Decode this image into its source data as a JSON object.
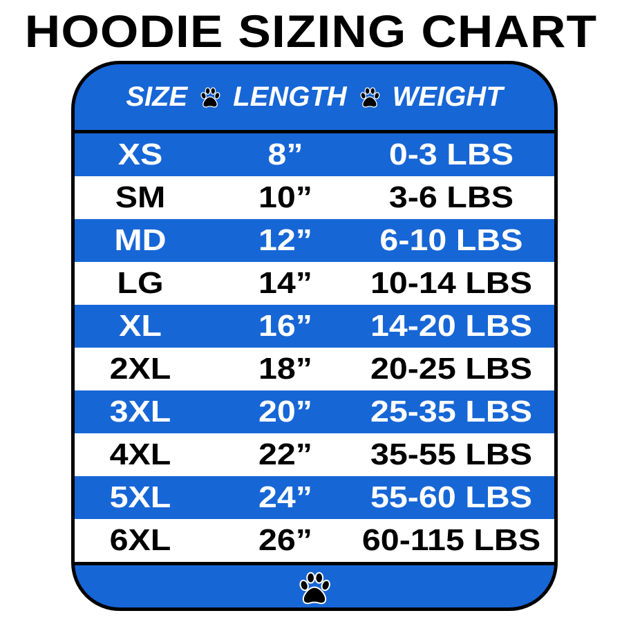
{
  "chart_data": {
    "type": "table",
    "title": "HOODIE SIZING CHART",
    "columns": [
      "SIZE",
      "LENGTH",
      "WEIGHT"
    ],
    "rows": [
      [
        "XS",
        "8”",
        "0-3 LBS"
      ],
      [
        "SM",
        "10”",
        "3-6 LBS"
      ],
      [
        "MD",
        "12”",
        "6-10 LBS"
      ],
      [
        "LG",
        "14”",
        "10-14 LBS"
      ],
      [
        "XL",
        "16”",
        "14-20 LBS"
      ],
      [
        "2XL",
        "18”",
        "20-25 LBS"
      ],
      [
        "3XL",
        "20”",
        "25-35 LBS"
      ],
      [
        "4XL",
        "22”",
        "35-55 LBS"
      ],
      [
        "5XL",
        "24”",
        "55-60 LBS"
      ],
      [
        "6XL",
        "26”",
        "60-115 LBS"
      ]
    ]
  },
  "colors": {
    "blue": "#1766d6",
    "white": "#ffffff",
    "text_dark": "#000000"
  },
  "icons": {
    "separator": "paw-print-icon",
    "footer": "paw-print-icon"
  }
}
